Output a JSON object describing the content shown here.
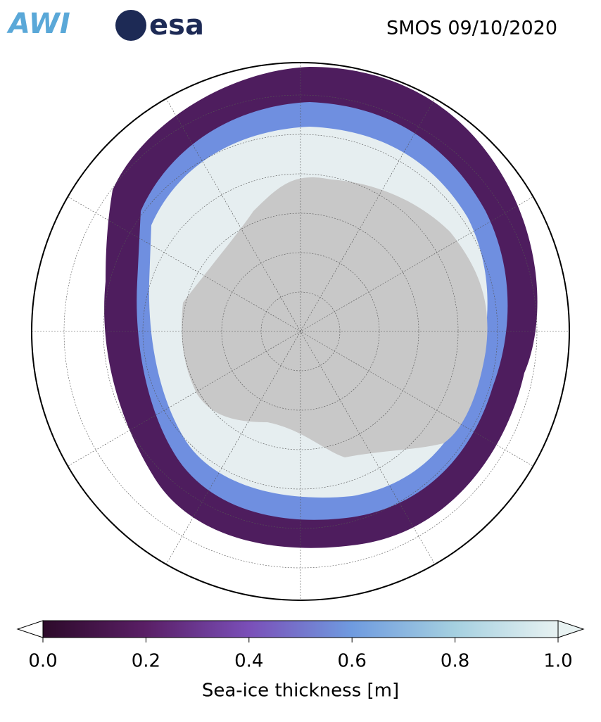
{
  "header": {
    "logos": [
      "AWI",
      "esa"
    ],
    "title": "SMOS 09/10/2020"
  },
  "colorbar": {
    "label": "Sea-ice thickness [m]",
    "lim": [
      0,
      1
    ],
    "ticks": [
      {
        "value": 0,
        "label": "0.0"
      },
      0.2,
      0.4,
      0.6,
      0.8,
      {
        "value": 1,
        "label": "1.0"
      }
    ],
    "colors": [
      "#2d0a2a",
      "#5a1f66",
      "#7a4fb8",
      "#6f9be0",
      "#a5d0e0",
      "#e8f2f2"
    ]
  }
}
